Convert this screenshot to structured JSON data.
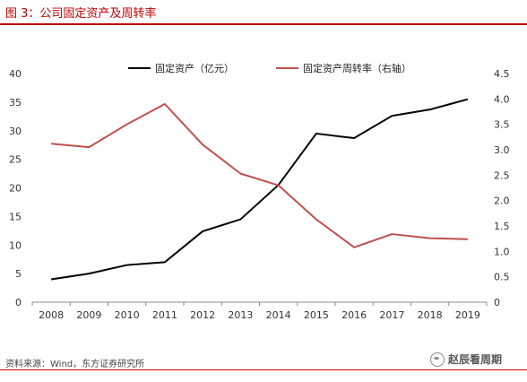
{
  "title": "图 3：公司固定资产及周转率",
  "source": "资料来源：Wind，东方证券研究所",
  "brand": "赵辰看周期",
  "chart_data": {
    "type": "line",
    "categories": [
      "2008",
      "2009",
      "2010",
      "2011",
      "2012",
      "2013",
      "2014",
      "2015",
      "2016",
      "2017",
      "2018",
      "2019"
    ],
    "series": [
      {
        "name": "固定资产（亿元）",
        "axis": "left",
        "color": "#000000",
        "values": [
          4.0,
          5.0,
          6.5,
          7.0,
          12.4,
          14.5,
          20.5,
          29.5,
          28.7,
          32.6,
          33.7,
          35.5
        ]
      },
      {
        "name": "固定资产周转率（右轴）",
        "axis": "right",
        "color": "#c0504d",
        "values": [
          3.12,
          3.05,
          3.5,
          3.9,
          3.1,
          2.53,
          2.3,
          1.63,
          1.08,
          1.34,
          1.26,
          1.24
        ]
      }
    ],
    "y_left": {
      "min": 0,
      "max": 40,
      "ticks": [
        "0",
        "5",
        "10",
        "15",
        "20",
        "25",
        "30",
        "35",
        "40"
      ]
    },
    "y_right": {
      "min": 0,
      "max": 4.5,
      "ticks": [
        "0",
        "0.5",
        "1.0",
        "1.5",
        "2.0",
        "2.5",
        "3.0",
        "3.5",
        "4.0",
        "4.5"
      ]
    },
    "grid": false,
    "legend": "top"
  }
}
